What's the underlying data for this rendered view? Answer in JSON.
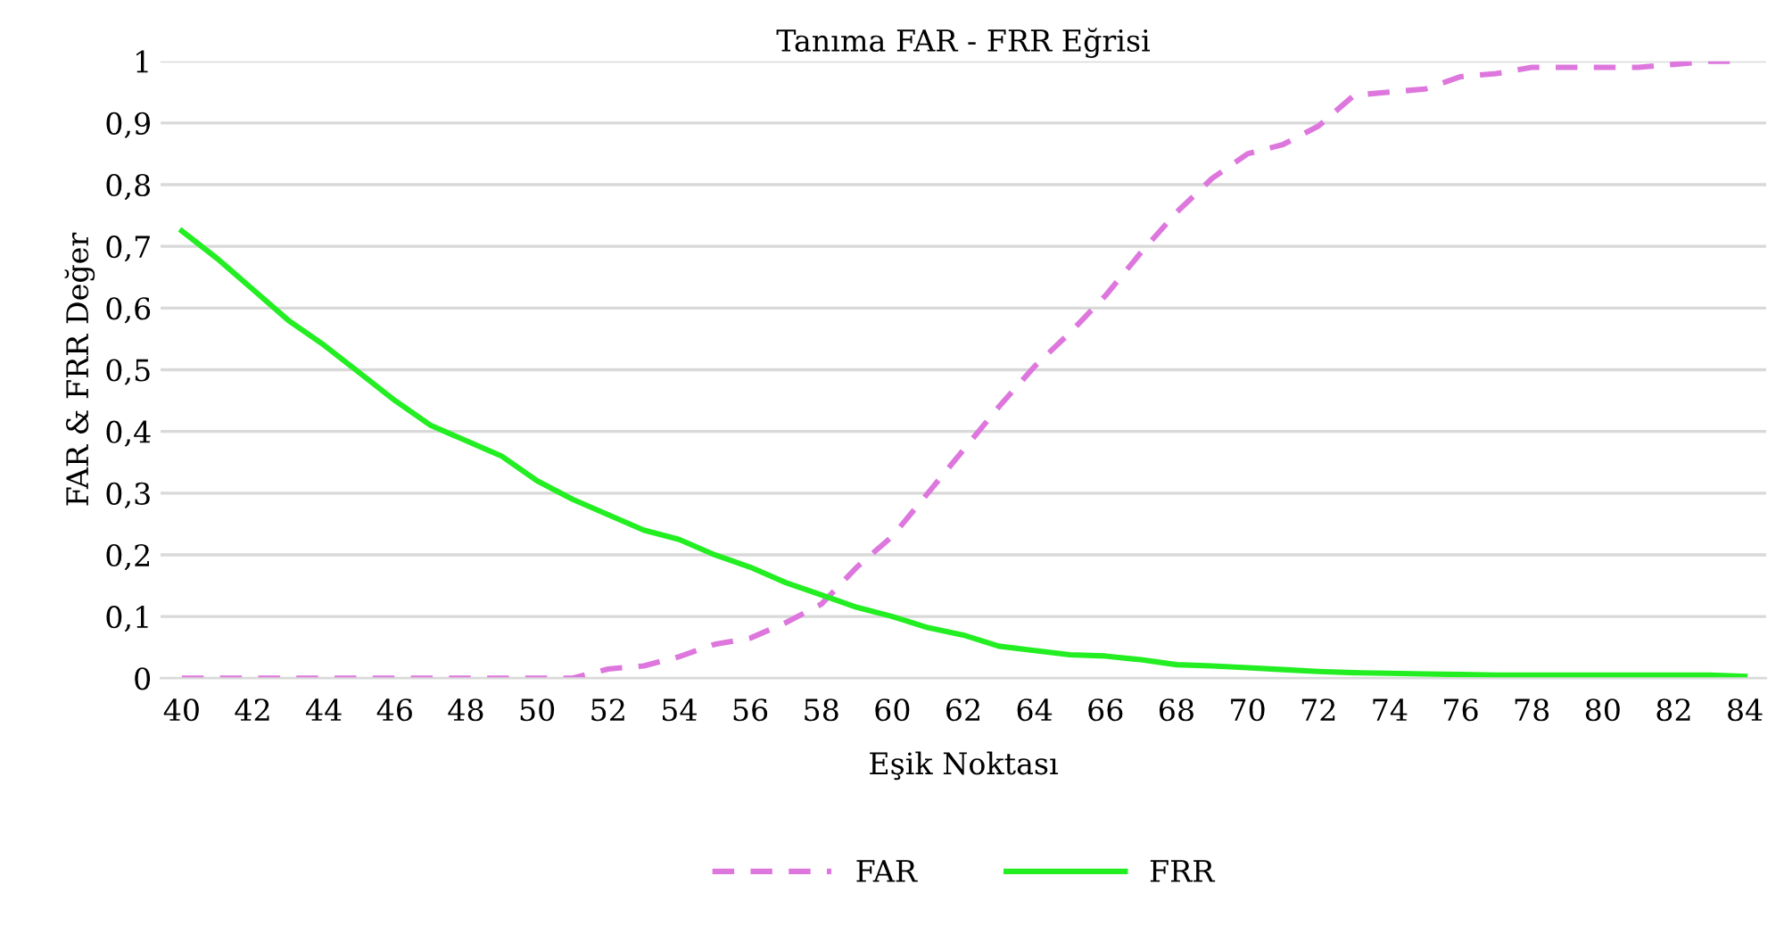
{
  "chart_data": {
    "type": "line",
    "title": "Tanıma FAR - FRR Eğrisi",
    "xlabel": "Eşik Noktası",
    "ylabel": "FAR & FRR Değer",
    "categories": [
      "40",
      null,
      "42",
      null,
      "44",
      null,
      "46",
      null,
      "48",
      null,
      "50",
      null,
      "52",
      null,
      "54",
      null,
      "56",
      null,
      "58",
      null,
      "60",
      null,
      "62",
      null,
      "64",
      null,
      "66",
      null,
      "68",
      null,
      "70",
      null,
      "72",
      null,
      "74",
      null,
      "76",
      null,
      "78",
      null,
      "80",
      null,
      "82",
      null,
      "84"
    ],
    "series": [
      {
        "name": "FAR",
        "color": "#dd77dd",
        "line_style": "dashed",
        "values": [
          0,
          0,
          0,
          0,
          0,
          0,
          0,
          0,
          0,
          0,
          0,
          0,
          0.015,
          0.02,
          0.035,
          0.055,
          0.065,
          0.09,
          0.12,
          0.18,
          0.23,
          0.3,
          0.37,
          0.44,
          0.505,
          0.56,
          0.62,
          0.69,
          0.755,
          0.81,
          0.85,
          0.865,
          0.895,
          0.945,
          0.95,
          0.955,
          0.975,
          0.98,
          0.99,
          0.99,
          0.99,
          0.99,
          0.995,
          1.0,
          1.0
        ]
      },
      {
        "name": "FRR",
        "color": "#22ee22",
        "line_style": "solid",
        "values": [
          0.725,
          0.68,
          0.63,
          0.58,
          0.54,
          0.495,
          0.45,
          0.41,
          0.385,
          0.36,
          0.32,
          0.29,
          0.265,
          0.24,
          0.225,
          0.2,
          0.18,
          0.155,
          0.135,
          0.115,
          0.1,
          0.082,
          0.07,
          0.052,
          0.045,
          0.038,
          0.036,
          0.03,
          0.022,
          0.02,
          0.017,
          0.014,
          0.011,
          0.009,
          0.008,
          0.007,
          0.006,
          0.005,
          0.005,
          0.005,
          0.005,
          0.005,
          0.005,
          0.005,
          0.003
        ]
      }
    ],
    "ylim": [
      0,
      1
    ],
    "yticks": [
      0,
      {
        "value": 0.1,
        "label": "0,1"
      },
      {
        "value": 0.2,
        "label": "0,2"
      },
      {
        "value": 0.3,
        "label": "0,3"
      },
      {
        "value": 0.4,
        "label": "0,4"
      },
      {
        "value": 0.5,
        "label": "0,5"
      },
      {
        "value": 0.6,
        "label": "0,6"
      },
      {
        "value": 0.7,
        "label": "0,7"
      },
      {
        "value": 0.8,
        "label": "0,8"
      },
      {
        "value": 0.9,
        "label": "0,9"
      },
      1
    ],
    "grid": "y",
    "legend": "bottom"
  }
}
